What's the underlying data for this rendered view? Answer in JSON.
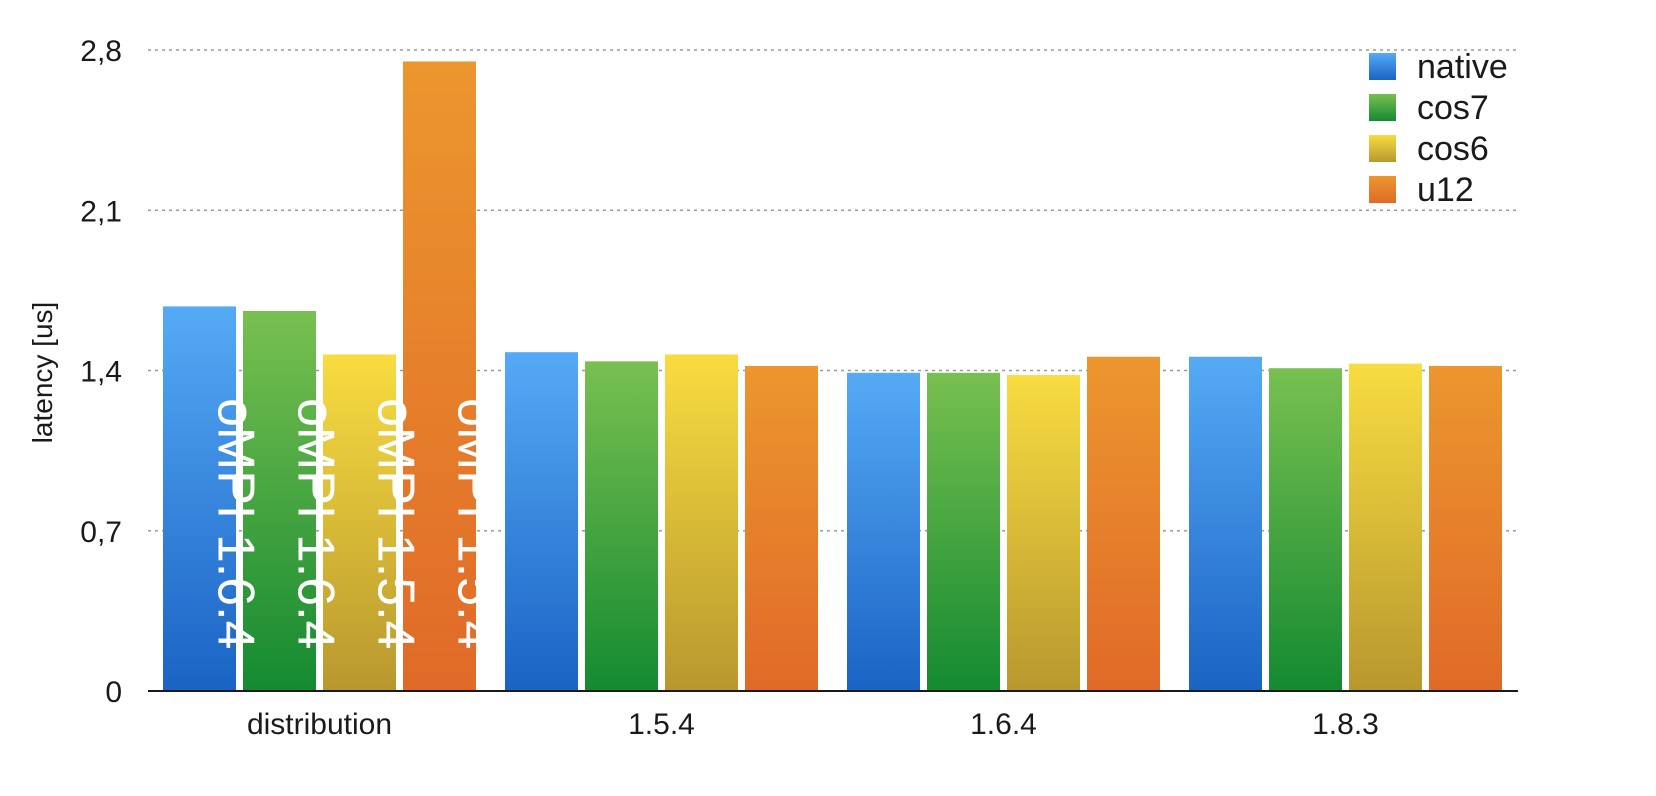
{
  "chart_data": {
    "type": "bar",
    "title": "",
    "xlabel": "",
    "ylabel": "latency [us]",
    "ylim": [
      0,
      2.8
    ],
    "yticks": [
      0,
      0.7,
      1.4,
      2.1,
      2.8
    ],
    "ytick_labels": [
      "0",
      "0,7",
      "1,4",
      "2,1",
      "2,8"
    ],
    "grid": "horizontal dotted",
    "legend_position": "top-right",
    "categories": [
      "distribution",
      "1.5.4",
      "1.6.4",
      "1.8.3"
    ],
    "series": [
      {
        "name": "native",
        "color": "#3f92e8",
        "color_top": "#55aaf5",
        "color_bottom": "#1a63c4",
        "values": [
          1.68,
          1.48,
          1.39,
          1.46
        ]
      },
      {
        "name": "cos7",
        "color": "#3da23f",
        "color_top": "#78c050",
        "color_bottom": "#148a31",
        "values": [
          1.66,
          1.44,
          1.39,
          1.41
        ]
      },
      {
        "name": "cos6",
        "color": "#e8c83a",
        "color_top": "#f8dc40",
        "color_bottom": "#b8982e",
        "values": [
          1.47,
          1.47,
          1.38,
          1.43
        ]
      },
      {
        "name": "u12",
        "color": "#e8822c",
        "color_top": "#ec962e",
        "color_bottom": "#e06a28",
        "values": [
          2.75,
          1.42,
          1.46,
          1.42
        ]
      }
    ],
    "bar_annotations": [
      {
        "category": "distribution",
        "series": "native",
        "text": "oMPI 1.6.4"
      },
      {
        "category": "distribution",
        "series": "cos7",
        "text": "oMPI 1.6.4"
      },
      {
        "category": "distribution",
        "series": "cos6",
        "text": "oMPI 1.5.4"
      },
      {
        "category": "distribution",
        "series": "u12",
        "text": "oMPI 1.5.4"
      }
    ]
  }
}
